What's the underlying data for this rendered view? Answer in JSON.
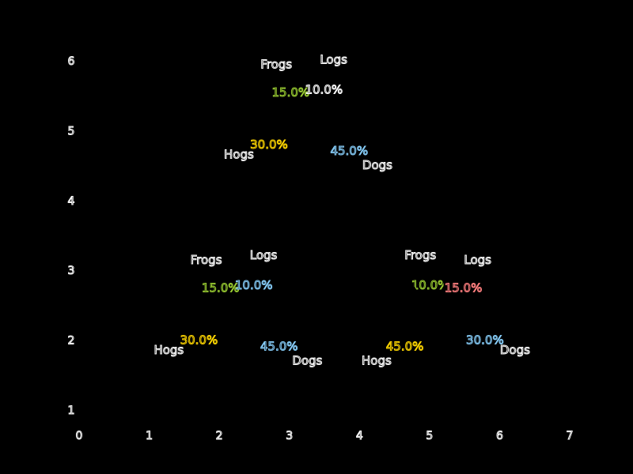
{
  "chart_data": {
    "type": "pie",
    "title": "",
    "xlabel": "",
    "ylabel": "",
    "x_ticks": [
      "0",
      "1",
      "2",
      "3",
      "4",
      "5",
      "6",
      "7"
    ],
    "y_ticks": [
      "1",
      "2",
      "3",
      "4",
      "5",
      "6"
    ],
    "xlim": [
      0,
      7
    ],
    "ylim": [
      1,
      6
    ],
    "grid": false,
    "pies": [
      {
        "center": [
          3.3,
          5.0
        ],
        "slices": [
          {
            "label": "Frogs",
            "value": 15.0,
            "pct_text": "15.0%",
            "color": "#9acd32"
          },
          {
            "label": "Hogs",
            "value": 30.0,
            "pct_text": "30.0%",
            "color": "#ffd700"
          },
          {
            "label": "Dogs",
            "value": 45.0,
            "pct_text": "45.0%",
            "color": "#87cefa"
          },
          {
            "label": "Logs",
            "value": 10.0,
            "pct_text": "10.0%",
            "color": "#ffffff"
          }
        ]
      },
      {
        "center": [
          2.3,
          2.2
        ],
        "slices": [
          {
            "label": "Frogs",
            "value": 15.0,
            "pct_text": "15.0%",
            "color": "#9acd32"
          },
          {
            "label": "Hogs",
            "value": 30.0,
            "pct_text": "30.0%",
            "color": "#ffd700"
          },
          {
            "label": "Dogs",
            "value": 45.0,
            "pct_text": "45.0%",
            "color": "#87cefa"
          },
          {
            "label": "Logs",
            "value": 10.0,
            "pct_text": "10.0%",
            "color": "#87cefa"
          }
        ]
      },
      {
        "center": [
          5.2,
          2.2
        ],
        "slices": [
          {
            "label": "Frogs",
            "value": 10.0,
            "pct_text": "10.0%",
            "color": "#9acd32"
          },
          {
            "label": "Hogs",
            "value": 45.0,
            "pct_text": "45.0%",
            "color": "#ffd700"
          },
          {
            "label": "Dogs",
            "value": 30.0,
            "pct_text": "30.0%",
            "color": "#87cefa"
          },
          {
            "label": "Logs",
            "value": 15.0,
            "pct_text": "15.0%",
            "color": "#ff7f7f"
          }
        ]
      }
    ]
  }
}
